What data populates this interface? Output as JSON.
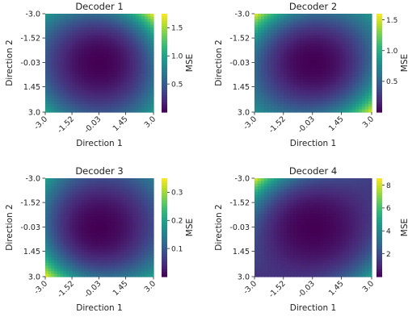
{
  "chart_data": [
    {
      "type": "heatmap",
      "title": "Decoder 1",
      "xlabel": "Direction 1",
      "ylabel": "Direction 2",
      "x_ticks": [
        "-3.0",
        "-1.52",
        "-0.03",
        "1.45",
        "3.0"
      ],
      "y_ticks": [
        "-3.0",
        "-1.52",
        "-0.03",
        "1.45",
        "3.0"
      ],
      "xlim": [
        -3.0,
        3.0
      ],
      "ylim": [
        3.0,
        -3.0
      ],
      "colorbar_label": "MSE",
      "colorbar_ticks": [
        "0.5",
        "1.0",
        "1.5"
      ],
      "colorbar_values": [
        0.5,
        1.0,
        1.5
      ],
      "value_range": [
        0.0,
        1.75
      ],
      "corner_values": {
        "top_left": 0.95,
        "top_right": 1.75,
        "bottom_left": 1.05,
        "bottom_right": 0.95
      },
      "minimum": {
        "x": 0.0,
        "y": -0.03,
        "value": 0.0
      },
      "colormap": "viridis"
    },
    {
      "type": "heatmap",
      "title": "Decoder 2",
      "xlabel": "Direction 1",
      "ylabel": "Direction 2",
      "x_ticks": [
        "-3.0",
        "-1.52",
        "-0.03",
        "1.45",
        "3.0"
      ],
      "y_ticks": [
        "-3.0",
        "-1.52",
        "-0.03",
        "1.45",
        "3.0"
      ],
      "xlim": [
        -3.0,
        3.0
      ],
      "ylim": [
        3.0,
        -3.0
      ],
      "colorbar_label": "MSE",
      "colorbar_ticks": [
        "0.5",
        "1.0",
        "1.5"
      ],
      "colorbar_values": [
        0.5,
        1.0,
        1.5
      ],
      "value_range": [
        0.0,
        1.6
      ],
      "corner_values": {
        "top_left": 1.6,
        "top_right": 0.85,
        "bottom_left": 0.8,
        "bottom_right": 1.55
      },
      "minimum": {
        "x": 0.0,
        "y": -0.03,
        "value": 0.0
      },
      "colormap": "viridis"
    },
    {
      "type": "heatmap",
      "title": "Decoder 3",
      "xlabel": "Direction 1",
      "ylabel": "Direction 2",
      "x_ticks": [
        "-3.0",
        "-1.52",
        "-0.03",
        "1.45",
        "3.0"
      ],
      "y_ticks": [
        "-3.0",
        "-1.52",
        "-0.03",
        "1.45",
        "3.0"
      ],
      "xlim": [
        -3.0,
        3.0
      ],
      "ylim": [
        3.0,
        -3.0
      ],
      "colorbar_label": "MSE",
      "colorbar_ticks": [
        "0.1",
        "0.2",
        "0.3"
      ],
      "colorbar_values": [
        0.1,
        0.2,
        0.3
      ],
      "value_range": [
        0.0,
        0.35
      ],
      "corner_values": {
        "top_left": 0.2,
        "top_right": 0.15,
        "bottom_left": 0.35,
        "bottom_right": 0.2
      },
      "minimum": {
        "x": 0.0,
        "y": -0.03,
        "value": 0.0
      },
      "colormap": "viridis"
    },
    {
      "type": "heatmap",
      "title": "Decoder 4",
      "xlabel": "Direction 1",
      "ylabel": "Direction 2",
      "x_ticks": [
        "-3.0",
        "-1.52",
        "-0.03",
        "1.45",
        "3.0"
      ],
      "y_ticks": [
        "-3.0",
        "-1.52",
        "-0.03",
        "1.45",
        "3.0"
      ],
      "xlim": [
        -3.0,
        3.0
      ],
      "ylim": [
        3.0,
        -3.0
      ],
      "colorbar_label": "MSE",
      "colorbar_ticks": [
        "2",
        "4",
        "6",
        "8"
      ],
      "colorbar_values": [
        2,
        4,
        6,
        8
      ],
      "value_range": [
        0.0,
        8.6
      ],
      "corner_values": {
        "top_left": 8.6,
        "top_right": 1.5,
        "bottom_left": 1.2,
        "bottom_right": 5.0
      },
      "minimum": {
        "x": 0.0,
        "y": -0.03,
        "value": 0.0
      },
      "colormap": "viridis"
    }
  ]
}
